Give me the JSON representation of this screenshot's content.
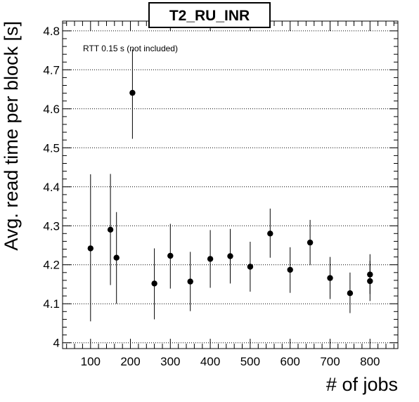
{
  "chart_data": {
    "type": "scatter",
    "title": "T2_RU_INR",
    "xlabel": "# of jobs",
    "ylabel": "Avg. read time per block [s]",
    "annotation": "RTT 0.15 s (not included)",
    "xlim": [
      30,
      870
    ],
    "ylim": [
      3.985,
      4.825
    ],
    "x_ticks": [
      100,
      200,
      300,
      400,
      500,
      600,
      700,
      800
    ],
    "y_ticks": [
      4.0,
      4.1,
      4.2,
      4.3,
      4.4,
      4.5,
      4.6,
      4.7,
      4.8
    ],
    "grid": {
      "horizontal": true,
      "vertical": false
    },
    "series": [
      {
        "points": [
          {
            "x": 100,
            "y": 4.242,
            "ylow": 4.055,
            "yhigh": 4.432
          },
          {
            "x": 150,
            "y": 4.29,
            "ylow": 4.148,
            "yhigh": 4.433
          },
          {
            "x": 165,
            "y": 4.218,
            "ylow": 4.1,
            "yhigh": 4.335
          },
          {
            "x": 205,
            "y": 4.641,
            "ylow": 4.523,
            "yhigh": 4.752
          },
          {
            "x": 260,
            "y": 4.152,
            "ylow": 4.06,
            "yhigh": 4.242
          },
          {
            "x": 300,
            "y": 4.223,
            "ylow": 4.139,
            "yhigh": 4.305
          },
          {
            "x": 350,
            "y": 4.157,
            "ylow": 4.081,
            "yhigh": 4.233
          },
          {
            "x": 400,
            "y": 4.215,
            "ylow": 4.141,
            "yhigh": 4.289
          },
          {
            "x": 450,
            "y": 4.222,
            "ylow": 4.152,
            "yhigh": 4.292
          },
          {
            "x": 500,
            "y": 4.195,
            "ylow": 4.131,
            "yhigh": 4.259
          },
          {
            "x": 550,
            "y": 4.28,
            "ylow": 4.218,
            "yhigh": 4.344
          },
          {
            "x": 600,
            "y": 4.187,
            "ylow": 4.128,
            "yhigh": 4.245
          },
          {
            "x": 650,
            "y": 4.257,
            "ylow": 4.199,
            "yhigh": 4.315
          },
          {
            "x": 700,
            "y": 4.166,
            "ylow": 4.112,
            "yhigh": 4.22
          },
          {
            "x": 750,
            "y": 4.127,
            "ylow": 4.076,
            "yhigh": 4.18
          },
          {
            "x": 800,
            "y": 4.175,
            "ylow": 4.125,
            "yhigh": 4.227
          },
          {
            "x": 800,
            "y": 4.158,
            "ylow": 4.107,
            "yhigh": 4.21
          }
        ]
      }
    ]
  }
}
